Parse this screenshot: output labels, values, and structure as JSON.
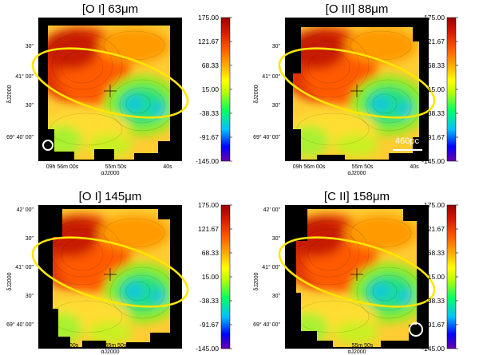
{
  "figure": {
    "panels": [
      {
        "title": "[O I] 63μm",
        "dec_ticks": [
          "30\"",
          "41° 00\"",
          "30\"",
          "69° 40' 00\""
        ],
        "ra_ticks": [
          "09h 56m 00s",
          "55m 50s",
          "40s"
        ],
        "ra_label": "αJ2000",
        "dec_label": "δJ2000",
        "scalebar": "",
        "beam": "left"
      },
      {
        "title": "[O III] 88μm",
        "dec_ticks": [
          "30\"",
          "41° 00\"",
          "30\"",
          "69° 40' 00\""
        ],
        "ra_ticks": [
          "09h 56m 00s",
          "55m 50s",
          "40s"
        ],
        "ra_label": "αJ2000",
        "dec_label": "δJ2000",
        "scalebar": "460pc",
        "beam": ""
      },
      {
        "title": "[O I] 145μm",
        "dec_ticks": [
          "42' 00\"",
          "30\"",
          "41° 00\"",
          "30\"",
          "69° 40' 00\""
        ],
        "ra_ticks": [
          "09h 56m 00s",
          "55m 50s",
          "40s"
        ],
        "ra_label": "αJ2000",
        "dec_label": "δJ2000",
        "scalebar": "",
        "beam": ""
      },
      {
        "title": "[C II] 158μm",
        "dec_ticks": [
          "42' 00\"",
          "30\"",
          "41° 00\"",
          "30\"",
          "69° 40' 00\""
        ],
        "ra_ticks": [
          "09h 56m 00s",
          "55m 50s",
          "40s"
        ],
        "ra_label": "αJ2000",
        "dec_label": "δJ2000",
        "scalebar": "",
        "beam": "right"
      }
    ],
    "colorbar": {
      "ticks": [
        "175.00",
        "121.67",
        "68.33",
        "15.00",
        "-38.33",
        "-91.67",
        "-145.00"
      ],
      "range": [
        -145,
        175
      ],
      "colors": [
        "#6a00a8",
        "#0000ff",
        "#00c0ff",
        "#00ff66",
        "#b8ff00",
        "#ffff00",
        "#ffb000",
        "#ff5a00",
        "#d81800",
        "#9a0000"
      ]
    },
    "ellipse_color": "#ffe600"
  }
}
